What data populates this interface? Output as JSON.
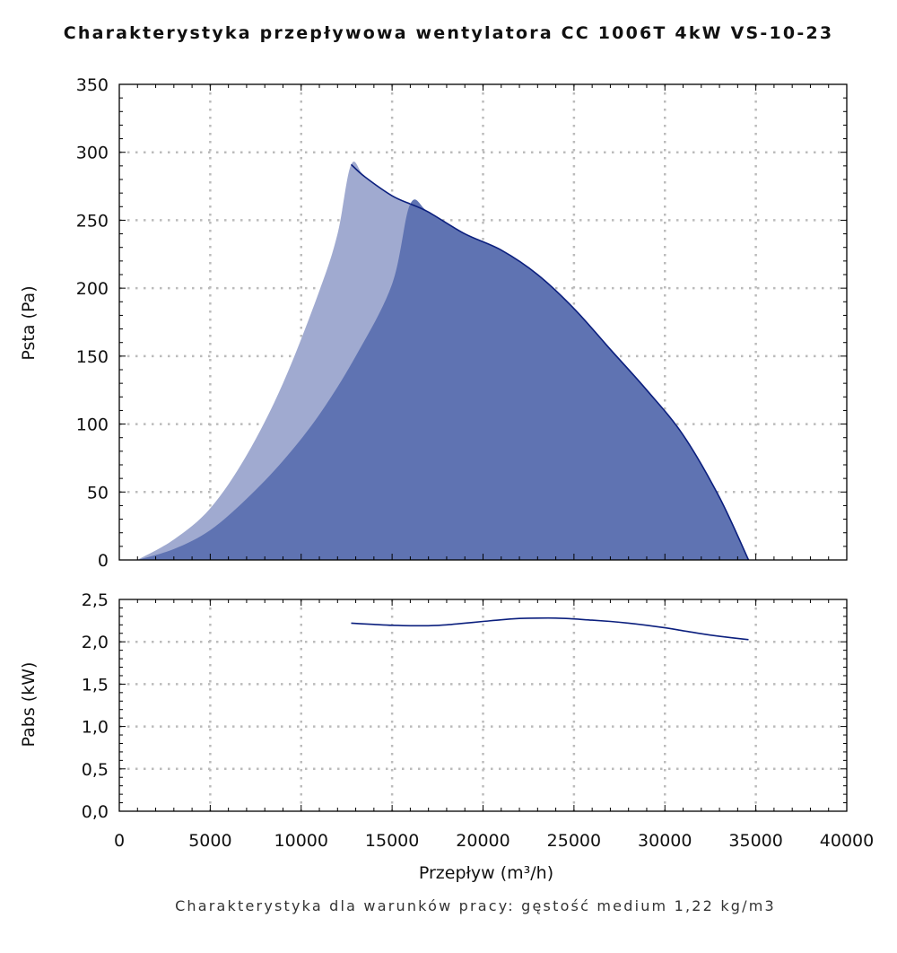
{
  "title": "Charakterystyka przepływowa wentylatora CC 1006T 4kW VS-10-23",
  "footnote": "Charakterystyka dla warunków pracy: gęstość medium 1,22 kg/m3",
  "colors": {
    "fill_light": "#a0aad0",
    "fill_dark": "#5f73b2",
    "line": "#0b1f7e",
    "grid": "#bbbbbb",
    "axis": "#000000"
  },
  "chart_data": [
    {
      "type": "area",
      "xlabel": "Przepływ (m³/h)",
      "ylabel": "Psta (Pa)",
      "xlim": [
        0,
        40000
      ],
      "ylim": [
        0,
        350
      ],
      "grid": true,
      "x_ticks": [
        0,
        5000,
        10000,
        15000,
        20000,
        25000,
        30000,
        35000,
        40000
      ],
      "y_ticks": [
        "0",
        "50",
        "100",
        "150",
        "200",
        "250",
        "300",
        "350"
      ],
      "series": [
        {
          "style": "light",
          "x": [
            1000,
            3000,
            5000,
            7000,
            9000,
            11000,
            12000,
            12750,
            13500,
            15000,
            16000
          ],
          "y": [
            0,
            15,
            38,
            77,
            130,
            198,
            240,
            291,
            282,
            268,
            262
          ]
        },
        {
          "style": "dark",
          "x": [
            1000,
            3000,
            5000,
            7000,
            9000,
            11000,
            13000,
            15000,
            16000,
            17000,
            19000,
            21000,
            23000,
            25000,
            27000,
            29000,
            31000,
            33000,
            34600
          ],
          "y": [
            0,
            8,
            22,
            45,
            73,
            107,
            150,
            203,
            262,
            256,
            240,
            228,
            210,
            185,
            155,
            125,
            92,
            46,
            0
          ]
        }
      ]
    },
    {
      "type": "line",
      "xlabel": "Przepływ (m³/h)",
      "ylabel": "Pabs (kW)",
      "xlim": [
        0,
        40000
      ],
      "ylim": [
        0,
        2.5
      ],
      "grid": true,
      "x_ticks": [
        "0",
        "5000",
        "10000",
        "15000",
        "20000",
        "25000",
        "30000",
        "35000",
        "40000"
      ],
      "y_ticks": [
        "0,0",
        "0,5",
        "1,0",
        "1,5",
        "2,0",
        "2,5"
      ],
      "series": [
        {
          "x": [
            12750,
            14000,
            15000,
            16000,
            17000,
            18000,
            19000,
            20000,
            21000,
            22000,
            23000,
            24000,
            25000,
            26000,
            27000,
            28000,
            29000,
            30000,
            31000,
            32000,
            33000,
            34600
          ],
          "y": [
            2.22,
            2.205,
            2.195,
            2.19,
            2.19,
            2.2,
            2.22,
            2.24,
            2.26,
            2.275,
            2.28,
            2.28,
            2.27,
            2.255,
            2.24,
            2.22,
            2.195,
            2.165,
            2.13,
            2.095,
            2.065,
            2.025
          ]
        }
      ]
    }
  ]
}
